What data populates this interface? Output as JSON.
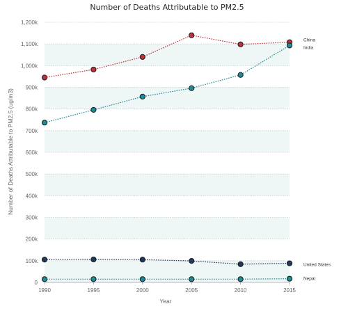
{
  "chart_data": {
    "type": "line",
    "title": "Number of Deaths Attributable to PM2.5",
    "xlabel": "Year",
    "ylabel": "Number of Deaths Attributable to PM2.5 (ug/m3)",
    "x": [
      1990,
      1995,
      2000,
      2005,
      2010,
      2015
    ],
    "xlim": [
      1990,
      2015
    ],
    "ylim": [
      0,
      1200000
    ],
    "yticks": [
      {
        "value": 0,
        "label": "0"
      },
      {
        "value": 100000,
        "label": "100k"
      },
      {
        "value": 200000,
        "label": "200k"
      },
      {
        "value": 300000,
        "label": "300k"
      },
      {
        "value": 400000,
        "label": "400k"
      },
      {
        "value": 500000,
        "label": "500k"
      },
      {
        "value": 600000,
        "label": "600k"
      },
      {
        "value": 700000,
        "label": "700k"
      },
      {
        "value": 800000,
        "label": "800k"
      },
      {
        "value": 900000,
        "label": "900k"
      },
      {
        "value": 1000000,
        "label": "1,000k"
      },
      {
        "value": 1100000,
        "label": "1,100k"
      },
      {
        "value": 1200000,
        "label": "1,200k"
      }
    ],
    "grid": true,
    "series": [
      {
        "name": "China",
        "color": "#c0323a",
        "values": [
          945000,
          982000,
          1040000,
          1140000,
          1098000,
          1108000
        ]
      },
      {
        "name": "India",
        "color": "#1e8b99",
        "values": [
          737000,
          796000,
          857000,
          896000,
          957000,
          1093000
        ]
      },
      {
        "name": "United States",
        "color": "#1e3a5c",
        "values": [
          105000,
          106000,
          105000,
          99000,
          84000,
          88000
        ]
      },
      {
        "name": "Nepal",
        "color": "#1e8b99",
        "values": [
          15000,
          15000,
          15000,
          15000,
          15000,
          17000
        ]
      }
    ]
  }
}
